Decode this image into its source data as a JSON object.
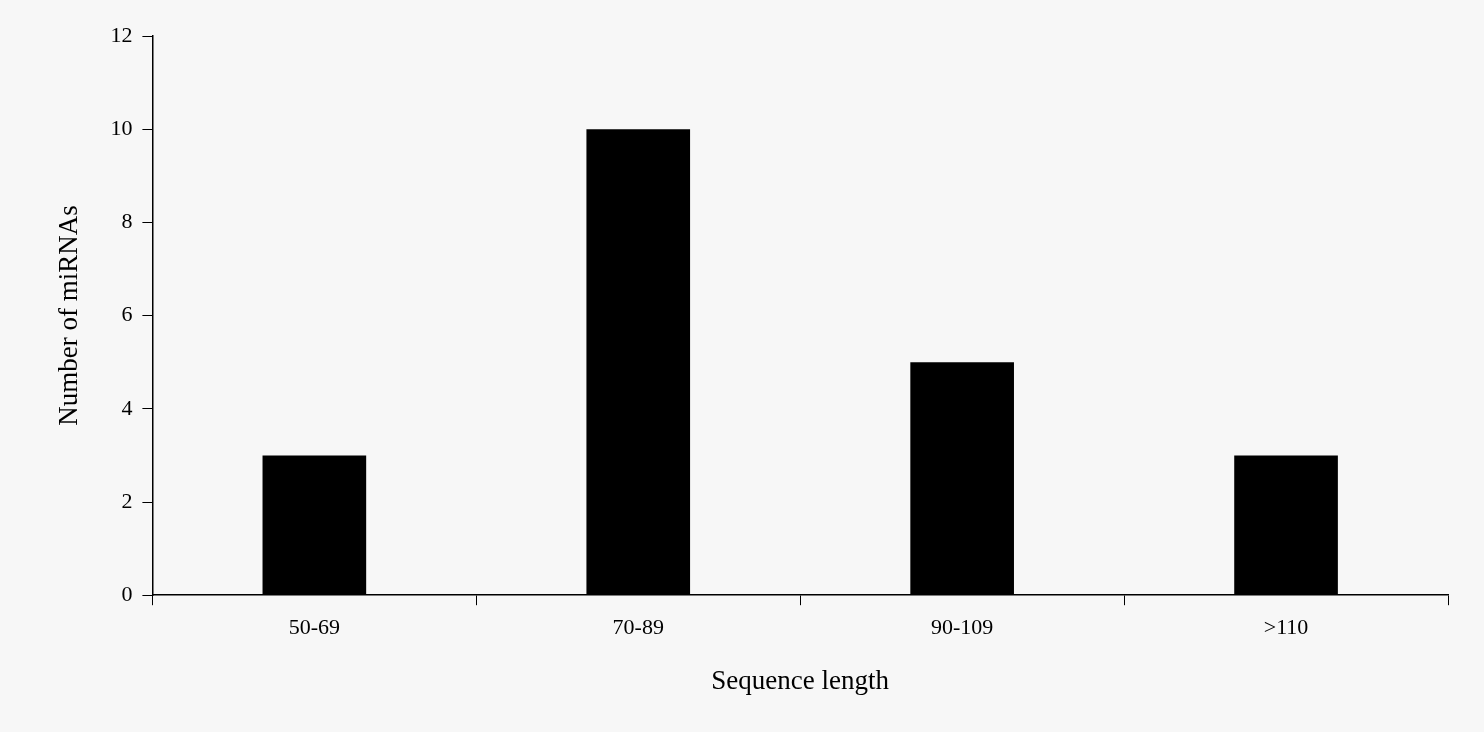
{
  "chart_data": {
    "type": "bar",
    "xlabel": "Sequence length",
    "ylabel": "Number of miRNAs",
    "categories": [
      "50-69",
      "70-89",
      "90-109",
      ">110"
    ],
    "values": [
      3,
      10,
      5,
      3
    ],
    "color": "#000000",
    "ylim": [
      0,
      12
    ],
    "yticks": [
      0,
      2,
      4,
      6,
      8,
      10,
      12
    ],
    "grid": false,
    "legend": false
  }
}
